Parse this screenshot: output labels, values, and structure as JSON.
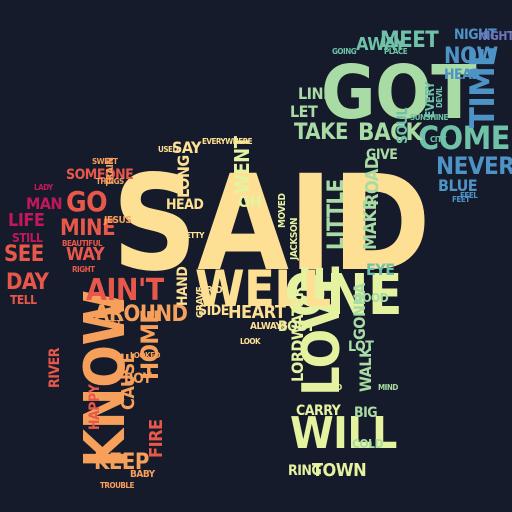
{
  "word_cloud": {
    "background": "#161b2b",
    "palette": [
      "#c2185b",
      "#e8584a",
      "#f6a05c",
      "#fde093",
      "#e5f3a0",
      "#a9dca4",
      "#6fc2a7",
      "#4e93c6",
      "#6e77bd"
    ],
    "words": [
      "SAID",
      "GOT",
      "KNOW",
      "LOVE",
      "ONE",
      "WELL",
      "COME",
      "TIME",
      "WILL",
      "NEVER",
      "AIN'T",
      "BACK",
      "TAKE",
      "MEET",
      "AWAY",
      "NOW",
      "NIGHT",
      "HEAR",
      "NIGHTLAND",
      "SOMEONE",
      "MAN",
      "LIFE",
      "STILL",
      "SEE",
      "DAY",
      "TELL",
      "GO",
      "MINE",
      "WAY",
      "AROUND",
      "HOME",
      "CAUSE",
      "BOY",
      "KEEP",
      "FIRE",
      "RIVER",
      "HAPPY",
      "BLUE",
      "HEART",
      "WENT",
      "SAY",
      "LONG",
      "LITTLE",
      "MAKE",
      "ROAD",
      "GIVE",
      "EYE",
      "GOOD",
      "WALK",
      "GONNA",
      "LOT",
      "TOWN",
      "BIG",
      "COLD",
      "RING",
      "CARRY",
      "LORDWATER",
      "BODY",
      "SOUL",
      "EVERY",
      "LINE",
      "LET",
      "OH",
      "HEAD",
      "HAND",
      "SIDE",
      "ALWAYS",
      "BABY",
      "FEEL",
      "SUNSHINE",
      "DEVIL",
      "JESUS",
      "MOVED",
      "JACKSON",
      "TRAIN",
      "EVERYWHERE",
      "RIDE",
      "USED",
      "LOOKED",
      "FIRST",
      "CITY",
      "WORLD",
      "MIND",
      "PLACE",
      "GOING",
      "HOLD",
      "THINGS",
      "PRETTY",
      "LADY",
      "LOOK",
      "GRAVE",
      "BEAUTIFUL",
      "RIGHT",
      "TROUBLE",
      "FEET",
      "SWEET"
    ]
  }
}
